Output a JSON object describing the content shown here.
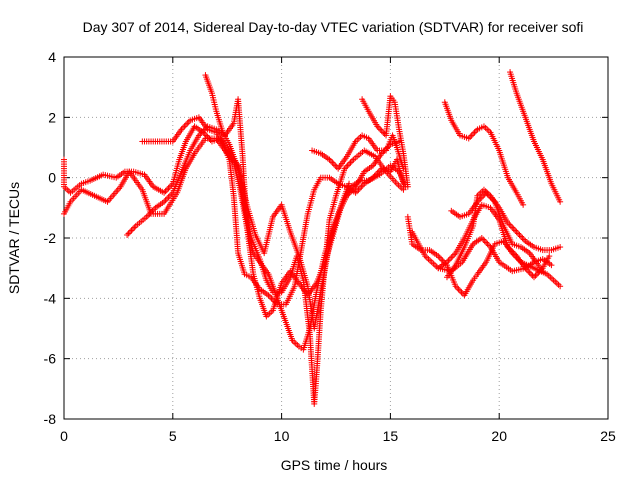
{
  "chart_data": {
    "type": "scatter",
    "title": "Day 307 of 2014, Sidereal Day-to-day VTEC variation (SDTVAR) for receiver sofi",
    "xlabel": "GPS time / hours",
    "ylabel": "SDTVAR / TECUs",
    "xlim": [
      0,
      25
    ],
    "ylim": [
      -8,
      4
    ],
    "x_ticks": [
      0,
      5,
      10,
      15,
      20,
      25
    ],
    "y_ticks": [
      -8,
      -6,
      -4,
      -2,
      0,
      2,
      4
    ],
    "x_tick_labels": [
      "0",
      "5",
      "10",
      "15",
      "20",
      "25"
    ],
    "y_tick_labels": [
      "-8",
      "-6",
      "-4",
      "-2",
      "0",
      "2",
      "4"
    ],
    "grid": true,
    "marker": "+",
    "marker_color": "#ff0000",
    "series": [
      {
        "values": [
          [
            0.0,
            0.6
          ],
          [
            0.0,
            -0.3
          ],
          [
            0.3,
            -0.5
          ],
          [
            0.8,
            -0.2
          ],
          [
            1.2,
            -0.1
          ],
          [
            1.8,
            0.1
          ],
          [
            2.4,
            0.0
          ],
          [
            2.8,
            0.2
          ],
          [
            3.2,
            0.2
          ],
          [
            3.7,
            0.1
          ],
          [
            4.1,
            -0.3
          ],
          [
            4.6,
            -0.5
          ],
          [
            5.0,
            -0.2
          ],
          [
            5.3,
            0.6
          ],
          [
            5.6,
            1.2
          ],
          [
            6.0,
            1.7
          ],
          [
            6.4,
            1.5
          ],
          [
            6.8,
            1.2
          ],
          [
            7.2,
            1.3
          ],
          [
            7.6,
            0.6
          ],
          [
            7.8,
            -0.6
          ],
          [
            8.0,
            -2.5
          ],
          [
            8.3,
            -3.2
          ],
          [
            8.6,
            -3.3
          ],
          [
            9.0,
            -3.7
          ],
          [
            9.4,
            -3.9
          ],
          [
            9.8,
            -4.2
          ],
          [
            10.2,
            -4.2
          ],
          [
            10.6,
            -3.6
          ],
          [
            10.9,
            -2.4
          ],
          [
            11.2,
            -1.2
          ],
          [
            11.5,
            -0.4
          ],
          [
            11.8,
            0.0
          ],
          [
            12.2,
            0.0
          ],
          [
            12.6,
            -0.2
          ],
          [
            13.0,
            -0.3
          ],
          [
            13.4,
            -0.5
          ],
          [
            13.8,
            -0.2
          ],
          [
            14.2,
            0.0
          ],
          [
            14.6,
            0.3
          ],
          [
            15.0,
            0.2
          ],
          [
            15.3,
            0.6
          ],
          [
            15.6,
            -0.2
          ]
        ]
      },
      {
        "values": [
          [
            0.0,
            -1.2
          ],
          [
            0.3,
            -0.8
          ],
          [
            0.8,
            -0.4
          ],
          [
            1.4,
            -0.6
          ],
          [
            2.0,
            -0.8
          ],
          [
            2.6,
            -0.3
          ],
          [
            3.0,
            0.2
          ],
          [
            3.6,
            -0.4
          ],
          [
            4.0,
            -1.2
          ],
          [
            4.6,
            -1.2
          ],
          [
            5.2,
            -0.5
          ],
          [
            5.6,
            0.3
          ],
          [
            6.0,
            0.8
          ],
          [
            6.5,
            1.3
          ],
          [
            7.0,
            1.3
          ],
          [
            7.4,
            0.9
          ],
          [
            7.8,
            0.5
          ],
          [
            8.1,
            -0.4
          ],
          [
            8.4,
            -1.6
          ],
          [
            8.7,
            -2.5
          ],
          [
            9.0,
            -2.8
          ],
          [
            9.4,
            -3.2
          ],
          [
            9.8,
            -4.0
          ],
          [
            10.2,
            -4.8
          ],
          [
            10.5,
            -5.4
          ],
          [
            10.8,
            -5.6
          ],
          [
            11.0,
            -5.7
          ],
          [
            11.3,
            -5.0
          ],
          [
            11.6,
            -3.8
          ],
          [
            12.0,
            -2.5
          ],
          [
            12.4,
            -1.6
          ],
          [
            12.8,
            -0.8
          ],
          [
            13.2,
            -0.3
          ],
          [
            13.6,
            -0.1
          ],
          [
            14.0,
            -0.1
          ],
          [
            14.5,
            0.1
          ],
          [
            15.0,
            0.4
          ],
          [
            15.4,
            0.2
          ],
          [
            15.7,
            -0.3
          ]
        ]
      },
      {
        "values": [
          [
            3.6,
            1.2
          ],
          [
            4.0,
            1.2
          ],
          [
            4.5,
            1.2
          ],
          [
            5.0,
            1.2
          ],
          [
            5.4,
            1.6
          ],
          [
            5.8,
            1.9
          ],
          [
            6.2,
            2.0
          ],
          [
            6.6,
            1.6
          ],
          [
            7.0,
            1.5
          ],
          [
            7.3,
            1.2
          ],
          [
            7.6,
            0.8
          ],
          [
            8.0,
            0.4
          ],
          [
            8.4,
            -0.9
          ],
          [
            8.8,
            -1.9
          ],
          [
            9.2,
            -2.5
          ],
          [
            9.6,
            -1.3
          ],
          [
            10.0,
            -0.9
          ],
          [
            10.4,
            -1.8
          ],
          [
            10.8,
            -2.6
          ],
          [
            11.2,
            -3.6
          ],
          [
            11.5,
            -5.0
          ],
          [
            11.8,
            -3.8
          ],
          [
            12.2,
            -2.2
          ],
          [
            12.6,
            -1.2
          ],
          [
            13.0,
            -0.6
          ],
          [
            13.4,
            -0.3
          ],
          [
            13.8,
            0.2
          ],
          [
            14.2,
            0.4
          ],
          [
            14.6,
            0.8
          ],
          [
            15.0,
            1.1
          ],
          [
            15.4,
            1.2
          ]
        ]
      },
      {
        "values": [
          [
            6.5,
            3.4
          ],
          [
            6.8,
            2.8
          ],
          [
            7.0,
            2.2
          ],
          [
            7.3,
            1.5
          ],
          [
            7.6,
            1.1
          ],
          [
            8.0,
            0.3
          ],
          [
            8.3,
            -1.0
          ],
          [
            8.6,
            -2.0
          ],
          [
            9.0,
            -2.7
          ],
          [
            9.3,
            -3.4
          ],
          [
            9.6,
            -3.8
          ],
          [
            10.0,
            -3.8
          ],
          [
            10.4,
            -3.3
          ],
          [
            10.7,
            -2.6
          ],
          [
            11.0,
            -3.4
          ],
          [
            11.3,
            -5.2
          ],
          [
            11.5,
            -7.5
          ],
          [
            11.6,
            -6.6
          ],
          [
            11.8,
            -4.4
          ],
          [
            12.0,
            -2.8
          ],
          [
            12.2,
            -1.4
          ],
          [
            12.5,
            -0.6
          ],
          [
            12.9,
            0.3
          ],
          [
            13.3,
            0.6
          ],
          [
            13.8,
            0.9
          ],
          [
            14.3,
            0.7
          ],
          [
            14.8,
            0.2
          ],
          [
            15.3,
            -0.2
          ],
          [
            15.6,
            -0.4
          ]
        ]
      },
      {
        "values": [
          [
            2.9,
            -1.9
          ],
          [
            3.3,
            -1.6
          ],
          [
            3.8,
            -1.3
          ],
          [
            4.2,
            -1.0
          ],
          [
            4.6,
            -0.8
          ],
          [
            5.0,
            -0.5
          ],
          [
            5.4,
            0.2
          ],
          [
            5.8,
            0.9
          ],
          [
            6.2,
            1.4
          ],
          [
            6.6,
            1.7
          ],
          [
            7.0,
            1.6
          ],
          [
            7.4,
            1.4
          ],
          [
            7.8,
            1.8
          ],
          [
            8.0,
            2.6
          ],
          [
            8.2,
            0.8
          ],
          [
            8.4,
            -1.6
          ],
          [
            8.7,
            -3.2
          ],
          [
            9.0,
            -4.0
          ],
          [
            9.3,
            -4.6
          ],
          [
            9.6,
            -4.4
          ],
          [
            10.0,
            -3.5
          ],
          [
            10.4,
            -3.1
          ],
          [
            10.8,
            -3.5
          ],
          [
            11.2,
            -3.9
          ],
          [
            11.6,
            -3.5
          ],
          [
            12.0,
            -2.8
          ],
          [
            12.4,
            -1.8
          ],
          [
            12.8,
            -0.8
          ],
          [
            13.1,
            -0.2
          ]
        ]
      },
      {
        "values": [
          [
            11.4,
            0.9
          ],
          [
            11.8,
            0.8
          ],
          [
            12.2,
            0.6
          ],
          [
            12.6,
            0.3
          ],
          [
            13.0,
            0.7
          ],
          [
            13.4,
            1.2
          ],
          [
            13.7,
            1.4
          ],
          [
            14.0,
            1.3
          ],
          [
            14.4,
            0.9
          ],
          [
            14.8,
            0.9
          ],
          [
            15.1,
            1.4
          ],
          [
            15.3,
            1.0
          ],
          [
            15.6,
            0.3
          ]
        ]
      },
      {
        "values": [
          [
            13.7,
            2.6
          ],
          [
            14.0,
            2.2
          ],
          [
            14.4,
            1.7
          ],
          [
            14.8,
            1.4
          ],
          [
            15.0,
            2.7
          ],
          [
            15.2,
            2.5
          ],
          [
            15.4,
            1.6
          ],
          [
            15.6,
            0.8
          ],
          [
            15.8,
            -0.3
          ]
        ]
      },
      {
        "values": [
          [
            15.8,
            -1.3
          ],
          [
            16.0,
            -2.2
          ],
          [
            16.4,
            -2.4
          ],
          [
            16.8,
            -2.4
          ],
          [
            17.2,
            -2.6
          ],
          [
            17.6,
            -2.9
          ],
          [
            18.0,
            -3.6
          ],
          [
            18.4,
            -3.9
          ],
          [
            18.8,
            -3.4
          ],
          [
            19.0,
            -3.2
          ],
          [
            19.4,
            -2.8
          ],
          [
            19.8,
            -2.2
          ],
          [
            20.2,
            -2.1
          ],
          [
            20.6,
            -2.5
          ],
          [
            21.0,
            -2.8
          ],
          [
            21.6,
            -3.0
          ],
          [
            22.2,
            -3.2
          ],
          [
            22.8,
            -3.6
          ]
        ]
      },
      {
        "values": [
          [
            16.0,
            -1.8
          ],
          [
            16.6,
            -2.6
          ],
          [
            17.2,
            -3.0
          ],
          [
            17.8,
            -3.1
          ],
          [
            18.3,
            -2.8
          ],
          [
            18.8,
            -2.2
          ],
          [
            19.2,
            -2.0
          ],
          [
            19.6,
            -2.3
          ],
          [
            20.0,
            -2.8
          ],
          [
            20.6,
            -3.1
          ],
          [
            21.2,
            -3.0
          ],
          [
            21.6,
            -3.3
          ],
          [
            22.0,
            -3.0
          ],
          [
            22.3,
            -2.6
          ]
        ]
      },
      {
        "values": [
          [
            17.2,
            -3.0
          ],
          [
            17.6,
            -2.8
          ],
          [
            18.0,
            -2.5
          ],
          [
            18.4,
            -2.0
          ],
          [
            18.8,
            -1.4
          ],
          [
            19.2,
            -0.9
          ],
          [
            19.6,
            -1.0
          ],
          [
            20.0,
            -1.4
          ],
          [
            20.4,
            -2.3
          ],
          [
            20.8,
            -2.6
          ],
          [
            21.2,
            -3.0
          ],
          [
            21.6,
            -2.8
          ],
          [
            22.0,
            -2.7
          ],
          [
            22.4,
            -2.9
          ]
        ]
      },
      {
        "values": [
          [
            17.6,
            -3.3
          ],
          [
            18.0,
            -2.9
          ],
          [
            18.4,
            -2.3
          ],
          [
            18.8,
            -1.6
          ],
          [
            19.0,
            -0.6
          ],
          [
            19.3,
            -0.4
          ],
          [
            19.6,
            -0.6
          ],
          [
            20.0,
            -1.0
          ],
          [
            20.4,
            -1.5
          ],
          [
            20.8,
            -1.8
          ],
          [
            21.2,
            -2.1
          ],
          [
            21.6,
            -2.3
          ],
          [
            22.0,
            -2.4
          ],
          [
            22.4,
            -2.4
          ],
          [
            22.8,
            -2.3
          ]
        ]
      },
      {
        "values": [
          [
            17.5,
            2.5
          ],
          [
            17.8,
            1.9
          ],
          [
            18.2,
            1.4
          ],
          [
            18.6,
            1.3
          ],
          [
            19.0,
            1.6
          ],
          [
            19.3,
            1.7
          ],
          [
            19.6,
            1.5
          ],
          [
            20.0,
            0.9
          ],
          [
            20.4,
            0.0
          ],
          [
            20.8,
            -0.5
          ],
          [
            21.1,
            -0.9
          ]
        ]
      },
      {
        "values": [
          [
            17.8,
            -1.1
          ],
          [
            18.2,
            -1.3
          ],
          [
            18.6,
            -1.2
          ],
          [
            19.0,
            -0.8
          ],
          [
            19.4,
            -0.5
          ],
          [
            19.8,
            -0.8
          ],
          [
            20.2,
            -1.6
          ],
          [
            20.6,
            -2.2
          ],
          [
            21.0,
            -2.3
          ],
          [
            21.4,
            -2.5
          ],
          [
            21.8,
            -2.9
          ],
          [
            22.0,
            -3.1
          ]
        ]
      },
      {
        "values": [
          [
            20.5,
            3.5
          ],
          [
            20.8,
            2.8
          ],
          [
            21.2,
            2.0
          ],
          [
            21.6,
            1.2
          ],
          [
            22.0,
            0.6
          ],
          [
            22.4,
            -0.2
          ],
          [
            22.8,
            -0.8
          ]
        ]
      }
    ]
  }
}
